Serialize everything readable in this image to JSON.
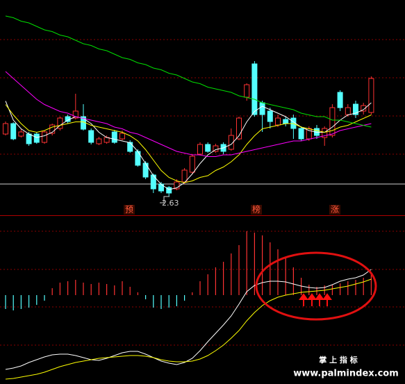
{
  "chart_data": [
    {
      "type": "candlestick",
      "up_color": "#ff3232",
      "down_color": "#54ffff",
      "ylim": [
        2.522,
        3.762
      ],
      "open": [
        2.99,
        3.05,
        2.978,
        2.99,
        2.99,
        2.942,
        2.994,
        3.022,
        3.09,
        3.082,
        3.09,
        3.01,
        2.934,
        2.942,
        3.002,
        2.962,
        2.942,
        2.89,
        2.822,
        2.754,
        2.702,
        2.682,
        2.674,
        2.714,
        2.77,
        2.874,
        2.93,
        2.89,
        2.93,
        2.902,
        2.962,
        3.202,
        3.394,
        3.17,
        3.122,
        3.042,
        3.074,
        3.082,
        3.022,
        2.962,
        3.022,
        2.97,
        2.982,
        3.23,
        3.102,
        3.162,
        3.122,
        3.114
      ],
      "high": [
        3.062,
        3.058,
        3.018,
        3.002,
        3.002,
        3.01,
        3.05,
        3.09,
        3.102,
        3.222,
        3.162,
        3.022,
        2.974,
        2.982,
        3.014,
        3.01,
        2.954,
        2.902,
        2.834,
        2.762,
        2.714,
        2.69,
        2.73,
        2.794,
        2.874,
        2.942,
        2.942,
        2.934,
        2.942,
        3.022,
        3.09,
        3.282,
        3.41,
        3.182,
        3.142,
        3.102,
        3.09,
        3.102,
        3.034,
        3.034,
        3.042,
        3.034,
        3.162,
        3.242,
        3.162,
        3.182,
        3.17,
        3.322
      ],
      "low": [
        2.982,
        2.954,
        2.97,
        2.922,
        2.934,
        2.934,
        2.982,
        3.01,
        3.05,
        3.074,
        3.01,
        2.93,
        2.926,
        2.934,
        2.934,
        2.954,
        2.882,
        2.802,
        2.73,
        2.65,
        2.65,
        2.63,
        2.666,
        2.702,
        2.762,
        2.866,
        2.882,
        2.882,
        2.874,
        2.894,
        2.954,
        3.182,
        3.09,
        3.002,
        3.022,
        3.03,
        3.034,
        2.962,
        2.95,
        2.95,
        2.962,
        2.922,
        2.97,
        3.122,
        3.09,
        3.082,
        3.102,
        3.102
      ],
      "close": [
        3.05,
        2.962,
        3.002,
        2.934,
        2.942,
        3.002,
        3.042,
        3.082,
        3.062,
        3.122,
        3.018,
        2.942,
        2.962,
        2.97,
        2.942,
        2.994,
        2.89,
        2.81,
        2.742,
        2.674,
        2.662,
        2.65,
        2.714,
        2.782,
        2.862,
        2.93,
        2.89,
        2.922,
        2.89,
        2.982,
        3.082,
        3.274,
        3.102,
        3.102,
        3.062,
        3.082,
        3.05,
        3.022,
        2.962,
        3.022,
        2.982,
        3.022,
        3.142,
        3.142,
        3.142,
        3.102,
        3.154,
        3.31
      ],
      "lines": [
        {
          "color": "#ffffff",
          "values": [
            3.18,
            3.07,
            3.02,
            2.99,
            2.97,
            2.98,
            3.0,
            3.04,
            3.07,
            3.09,
            3.08,
            3.05,
            3.0,
            2.97,
            2.96,
            2.95,
            2.94,
            2.89,
            2.82,
            2.75,
            2.7,
            2.67,
            2.68,
            2.71,
            2.76,
            2.82,
            2.87,
            2.9,
            2.91,
            2.93,
            2.98,
            3.06,
            3.12,
            3.15,
            3.13,
            3.11,
            3.09,
            3.06,
            3.03,
            3.01,
            3.0,
            3.0,
            3.03,
            3.07,
            3.1,
            3.11,
            3.13,
            3.17
          ]
        },
        {
          "color": "#ffff00",
          "values": [
            3.16,
            3.1,
            3.05,
            3.01,
            3.0,
            3.01,
            3.03,
            3.04,
            3.05,
            3.06,
            3.06,
            3.04,
            3.03,
            3.02,
            3.01,
            3.0,
            2.98,
            2.95,
            2.9,
            2.84,
            2.78,
            2.74,
            2.72,
            2.71,
            2.72,
            2.74,
            2.75,
            2.78,
            2.8,
            2.83,
            2.87,
            2.93,
            2.98,
            3.02,
            3.03,
            3.04,
            3.05,
            3.05,
            3.03,
            3.02,
            3.01,
            3.0,
            3.01,
            3.03,
            3.04,
            3.06,
            3.08,
            3.1
          ]
        },
        {
          "color": "#ff00ff",
          "values": [
            3.35,
            3.31,
            3.27,
            3.23,
            3.19,
            3.16,
            3.14,
            3.12,
            3.11,
            3.09,
            3.08,
            3.07,
            3.06,
            3.05,
            3.03,
            3.02,
            3.0,
            2.99,
            2.97,
            2.95,
            2.93,
            2.91,
            2.89,
            2.88,
            2.87,
            2.87,
            2.86,
            2.86,
            2.87,
            2.87,
            2.88,
            2.89,
            2.9,
            2.91,
            2.92,
            2.93,
            2.94,
            2.95,
            2.95,
            2.96,
            2.97,
            2.98,
            2.99,
            3.01,
            3.02,
            3.03,
            3.04,
            3.05
          ]
        },
        {
          "color": "#00e000",
          "values": [
            3.67,
            3.66,
            3.64,
            3.63,
            3.61,
            3.59,
            3.58,
            3.56,
            3.55,
            3.53,
            3.51,
            3.5,
            3.48,
            3.47,
            3.45,
            3.43,
            3.42,
            3.4,
            3.39,
            3.37,
            3.36,
            3.34,
            3.33,
            3.31,
            3.29,
            3.28,
            3.26,
            3.25,
            3.24,
            3.23,
            3.21,
            3.2,
            3.19,
            3.17,
            3.16,
            3.15,
            3.14,
            3.13,
            3.11,
            3.1,
            3.09,
            3.09,
            3.07,
            3.07,
            3.06,
            3.05,
            3.04,
            3.03
          ]
        }
      ],
      "annotations": [
        "预",
        "榜",
        "涨"
      ]
    },
    {
      "type": "macd",
      "pos_color": "#ff3232",
      "neg_color": "#54ffff",
      "ylim": [
        -0.128,
        0.115
      ],
      "values": [
        -0.02,
        -0.022,
        -0.02,
        -0.018,
        -0.014,
        -0.008,
        0.01,
        0.018,
        0.02,
        0.022,
        0.018,
        0.016,
        0.018,
        0.016,
        0.014,
        0.02,
        0.012,
        0.004,
        -0.006,
        -0.018,
        -0.02,
        -0.018,
        -0.016,
        -0.008,
        0.004,
        0.02,
        0.03,
        0.04,
        0.048,
        0.06,
        0.072,
        0.092,
        0.09,
        0.086,
        0.076,
        0.066,
        0.054,
        0.04,
        0.025,
        0.015,
        0.012,
        0.014,
        0.015,
        0.017,
        0.02,
        0.022,
        0.025,
        0.03
      ],
      "lines": [
        {
          "color": "#ffffff",
          "values": [
            -0.107,
            -0.105,
            -0.102,
            -0.097,
            -0.093,
            -0.089,
            -0.086,
            -0.085,
            -0.085,
            -0.087,
            -0.09,
            -0.093,
            -0.094,
            -0.091,
            -0.087,
            -0.083,
            -0.081,
            -0.081,
            -0.085,
            -0.09,
            -0.095,
            -0.098,
            -0.1,
            -0.097,
            -0.091,
            -0.08,
            -0.067,
            -0.055,
            -0.043,
            -0.03,
            -0.013,
            0.005,
            0.014,
            0.018,
            0.02,
            0.02,
            0.019,
            0.016,
            0.013,
            0.011,
            0.01,
            0.011,
            0.015,
            0.02,
            0.023,
            0.025,
            0.029,
            0.037
          ]
        },
        {
          "color": "#ffff00",
          "values": [
            -0.121,
            -0.12,
            -0.118,
            -0.116,
            -0.114,
            -0.111,
            -0.107,
            -0.103,
            -0.1,
            -0.097,
            -0.095,
            -0.093,
            -0.091,
            -0.09,
            -0.089,
            -0.088,
            -0.087,
            -0.087,
            -0.088,
            -0.09,
            -0.093,
            -0.095,
            -0.096,
            -0.096,
            -0.095,
            -0.092,
            -0.087,
            -0.08,
            -0.072,
            -0.062,
            -0.051,
            -0.037,
            -0.025,
            -0.015,
            -0.008,
            -0.003,
            0.0,
            0.002,
            0.004,
            0.005,
            0.006,
            0.007,
            0.009,
            0.011,
            0.013,
            0.016,
            0.019,
            0.023
          ]
        }
      ]
    }
  ],
  "watermark": {
    "name": "掌 上 指 标",
    "url": "www.palmindex.com"
  }
}
